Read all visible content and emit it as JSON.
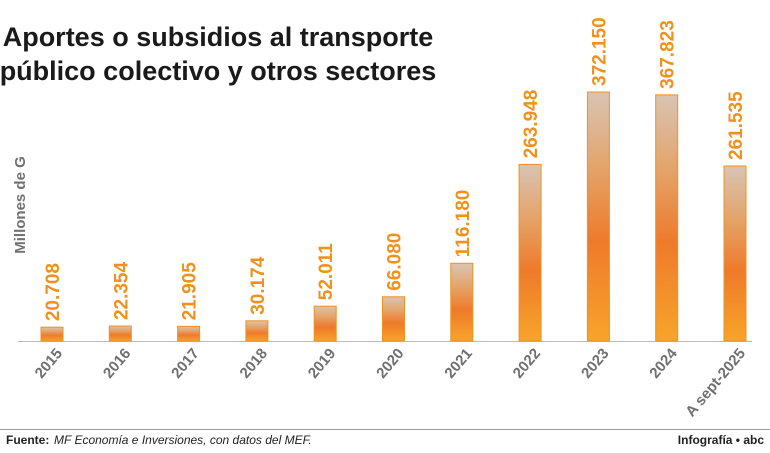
{
  "chart_data": {
    "type": "bar",
    "title": [
      "Aportes o subsidios al transporte",
      "público colectivo y otros sectores"
    ],
    "y_label": "Millones de G",
    "categories": [
      "2015",
      "2016",
      "2017",
      "2018",
      "2019",
      "2020",
      "2021",
      "2022",
      "2023",
      "2024",
      "A sept-2025"
    ],
    "values": [
      20708,
      22354,
      21905,
      30174,
      52011,
      66080,
      116180,
      263948,
      372150,
      367823,
      261535
    ],
    "value_labels": [
      "20.708",
      "22.354",
      "21.905",
      "30.174",
      "52.011",
      "66.080",
      "116.180",
      "263.948",
      "372.150",
      "367.823",
      "261.535"
    ],
    "color": "#f0911e",
    "source_label": "Fuente:",
    "source_text": "MF Economía e Inversiones, con datos del MEF.",
    "credit": "Infografía • abc"
  }
}
